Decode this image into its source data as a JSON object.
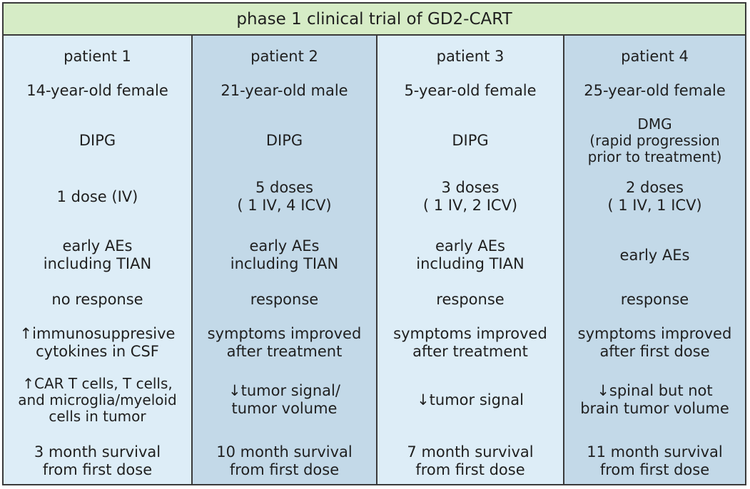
{
  "title": "phase 1 clinical trial of GD2-CART",
  "colors": {
    "title_bg": "#d6ecc6",
    "col_light": "#ddedf7",
    "col_dark": "#c3d9e8",
    "border": "#3a3a3a"
  },
  "patients": [
    {
      "name": "patient 1",
      "demographics": "14-year-old female",
      "diagnosis": "DIPG",
      "dosing": "1 dose (IV)",
      "adverse_events": "early AEs\nincluding TIAN",
      "response": "no response",
      "clinical_note": "↑immunosuppresive\ncytokines in CSF",
      "tumor_finding": "↑CAR T cells, T cells,\nand microglia/myeloid\ncells in tumor",
      "survival": "3 month survival\nfrom first dose"
    },
    {
      "name": "patient 2",
      "demographics": "21-year-old male",
      "diagnosis": "DIPG",
      "dosing": "5 doses\n( 1 IV, 4 ICV)",
      "adverse_events": "early AEs\nincluding TIAN",
      "response": "response",
      "clinical_note": "symptoms improved\nafter treatment",
      "tumor_finding": "↓tumor signal/\ntumor volume",
      "survival": "10 month survival\nfrom first dose"
    },
    {
      "name": "patient 3",
      "demographics": "5-year-old female",
      "diagnosis": "DIPG",
      "dosing": "3 doses\n( 1 IV, 2 ICV)",
      "adverse_events": "early AEs\nincluding TIAN",
      "response": "response",
      "clinical_note": "symptoms improved\nafter treatment",
      "tumor_finding": "↓tumor signal",
      "survival": "7 month survival\nfrom first dose"
    },
    {
      "name": "patient 4",
      "demographics": "25-year-old female",
      "diagnosis": "DMG\n(rapid progression\nprior to treatment)",
      "dosing": "2 doses\n( 1 IV, 1 ICV)",
      "adverse_events": "early AEs",
      "response": "response",
      "clinical_note": "symptoms improved\nafter first dose",
      "tumor_finding": "↓spinal but not\nbrain tumor volume",
      "survival": "11 month survival\nfrom first dose"
    }
  ]
}
